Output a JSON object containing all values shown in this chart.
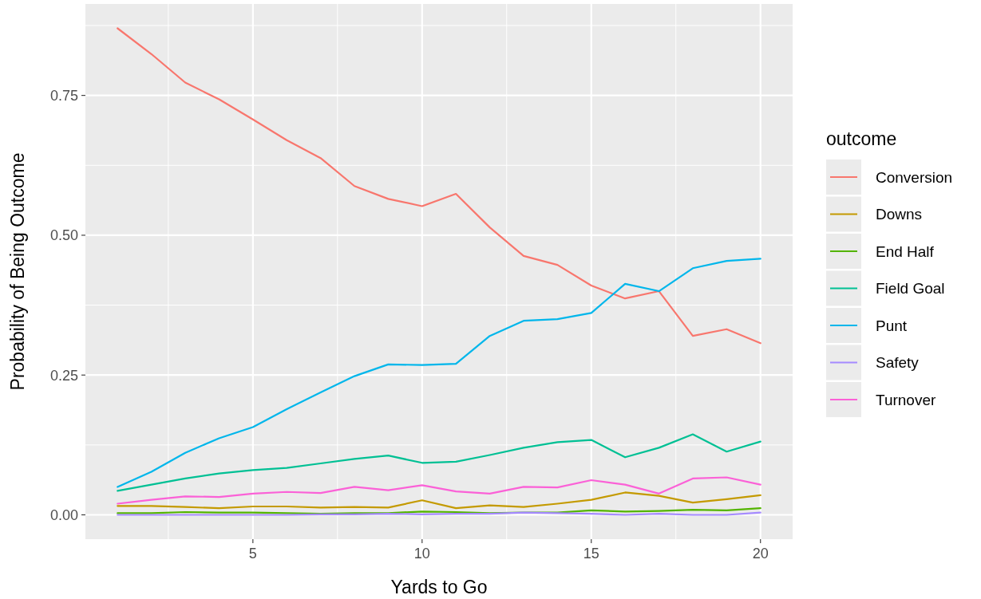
{
  "chart_data": {
    "type": "line",
    "xlabel": "Yards to Go",
    "ylabel": "Probability of Being Outcome",
    "legend_title": "outcome",
    "legend": "right",
    "grid": true,
    "x": [
      1,
      2,
      3,
      4,
      5,
      6,
      7,
      8,
      9,
      10,
      11,
      12,
      13,
      14,
      15,
      16,
      17,
      18,
      19,
      20
    ],
    "xlim": [
      0.05,
      20.95
    ],
    "xticks": [
      5,
      10,
      15,
      20
    ],
    "ylim": [
      -0.0435,
      0.9135
    ],
    "yticks": [
      {
        "value": 0,
        "label": "0.00"
      },
      {
        "value": 0.25,
        "label": "0.25"
      },
      {
        "value": 0.5,
        "label": "0.50"
      },
      {
        "value": 0.75,
        "label": "0.75"
      }
    ],
    "series": [
      {
        "name": "Conversion",
        "color": "#f8766d",
        "values": [
          0.87,
          0.824,
          0.773,
          0.743,
          0.707,
          0.67,
          0.638,
          0.588,
          0.565,
          0.552,
          0.574,
          0.514,
          0.463,
          0.447,
          0.41,
          0.387,
          0.4,
          0.32,
          0.332,
          0.307
        ]
      },
      {
        "name": "Downs",
        "color": "#c49a00",
        "values": [
          0.016,
          0.016,
          0.014,
          0.012,
          0.015,
          0.015,
          0.013,
          0.014,
          0.013,
          0.026,
          0.012,
          0.017,
          0.014,
          0.02,
          0.027,
          0.04,
          0.034,
          0.022,
          0.028,
          0.035
        ]
      },
      {
        "name": "End Half",
        "color": "#53b400",
        "values": [
          0.003,
          0.003,
          0.005,
          0.004,
          0.004,
          0.003,
          0.002,
          0.003,
          0.003,
          0.006,
          0.005,
          0.003,
          0.004,
          0.004,
          0.008,
          0.006,
          0.007,
          0.009,
          0.008,
          0.012
        ]
      },
      {
        "name": "Field Goal",
        "color": "#00c094",
        "values": [
          0.043,
          0.054,
          0.065,
          0.074,
          0.08,
          0.084,
          0.092,
          0.1,
          0.106,
          0.093,
          0.095,
          0.107,
          0.12,
          0.13,
          0.134,
          0.103,
          0.12,
          0.144,
          0.113,
          0.131
        ]
      },
      {
        "name": "Punt",
        "color": "#00b6eb",
        "values": [
          0.05,
          0.077,
          0.111,
          0.137,
          0.157,
          0.189,
          0.219,
          0.248,
          0.269,
          0.268,
          0.27,
          0.32,
          0.347,
          0.35,
          0.361,
          0.413,
          0.4,
          0.441,
          0.454,
          0.458
        ]
      },
      {
        "name": "Safety",
        "color": "#a58aff",
        "values": [
          0.0,
          0.0,
          0.0,
          0.0,
          0.0,
          0.0,
          0.001,
          0.001,
          0.002,
          0.001,
          0.002,
          0.002,
          0.004,
          0.003,
          0.002,
          0.0,
          0.002,
          0.0,
          0.0,
          0.004
        ]
      },
      {
        "name": "Turnover",
        "color": "#fb61d7",
        "values": [
          0.02,
          0.027,
          0.033,
          0.032,
          0.038,
          0.041,
          0.039,
          0.05,
          0.044,
          0.053,
          0.042,
          0.038,
          0.05,
          0.049,
          0.062,
          0.054,
          0.038,
          0.065,
          0.067,
          0.054
        ]
      }
    ]
  }
}
